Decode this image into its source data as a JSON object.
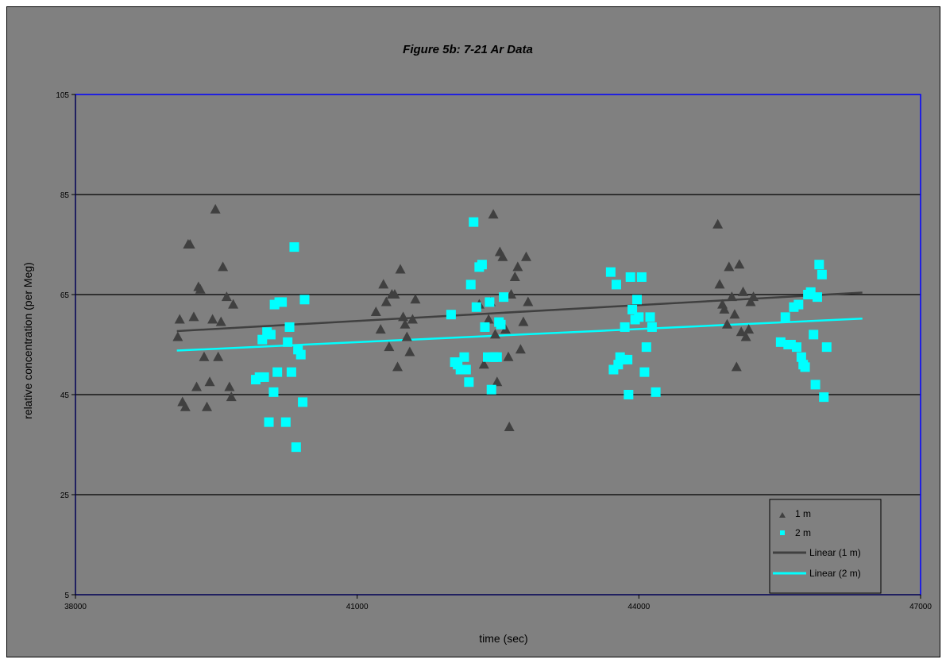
{
  "chart_data": {
    "type": "scatter",
    "title": "Figure 5b: 7-21 Ar Data",
    "xlabel": "time (sec)",
    "ylabel": "relative concentration (per Meg)",
    "xlim": [
      38000,
      47000
    ],
    "ylim": [
      5,
      105
    ],
    "x_ticks": [
      38000,
      41000,
      44000,
      47000
    ],
    "x_tick_labels": [
      "38000",
      "41000",
      "44000",
      "47000"
    ],
    "y_ticks": [
      5,
      25,
      45,
      65,
      85,
      105
    ],
    "y_tick_labels": [
      "5",
      "25",
      "45",
      "65",
      "85",
      "105"
    ],
    "grid": "horizontal",
    "legend_position": "bottom-right",
    "colors": {
      "background": "#808080",
      "plot_border": "#0000ff",
      "gridline": "#000000",
      "series_1m": "#404040",
      "series_2m": "#00ffff"
    },
    "series": [
      {
        "name": "1 m",
        "marker": "triangle",
        "color": "#404040",
        "points": [
          [
            39090,
            56.5
          ],
          [
            39110,
            60.0
          ],
          [
            39140,
            43.5
          ],
          [
            39170,
            42.5
          ],
          [
            39200,
            75.0
          ],
          [
            39220,
            75.0
          ],
          [
            39260,
            60.5
          ],
          [
            39290,
            46.5
          ],
          [
            39310,
            66.5
          ],
          [
            39330,
            66.0
          ],
          [
            39370,
            52.5
          ],
          [
            39400,
            42.5
          ],
          [
            39430,
            47.5
          ],
          [
            39460,
            60.0
          ],
          [
            39490,
            82.0
          ],
          [
            39520,
            52.5
          ],
          [
            39550,
            59.5
          ],
          [
            39570,
            70.5
          ],
          [
            39610,
            64.5
          ],
          [
            39640,
            46.5
          ],
          [
            39660,
            44.5
          ],
          [
            39680,
            63.0
          ],
          [
            41200,
            61.5
          ],
          [
            41250,
            58.0
          ],
          [
            41280,
            67.0
          ],
          [
            41310,
            63.5
          ],
          [
            41340,
            54.5
          ],
          [
            41370,
            65.0
          ],
          [
            41400,
            65.0
          ],
          [
            41430,
            50.5
          ],
          [
            41460,
            70.0
          ],
          [
            41490,
            60.5
          ],
          [
            41510,
            59.0
          ],
          [
            41530,
            56.5
          ],
          [
            41560,
            53.5
          ],
          [
            41590,
            60.0
          ],
          [
            41620,
            64.0
          ],
          [
            42300,
            63.0
          ],
          [
            42350,
            51.0
          ],
          [
            42400,
            60.0
          ],
          [
            42420,
            63.5
          ],
          [
            42450,
            81.0
          ],
          [
            42470,
            57.0
          ],
          [
            42490,
            47.5
          ],
          [
            42520,
            73.5
          ],
          [
            42550,
            72.5
          ],
          [
            42580,
            58.0
          ],
          [
            42610,
            52.5
          ],
          [
            42640,
            65.0
          ],
          [
            42680,
            68.5
          ],
          [
            42710,
            70.5
          ],
          [
            42740,
            54.0
          ],
          [
            42770,
            59.5
          ],
          [
            42800,
            72.5
          ],
          [
            42820,
            63.5
          ],
          [
            42620,
            38.5
          ],
          [
            44840,
            79.0
          ],
          [
            44860,
            67.0
          ],
          [
            44890,
            63.0
          ],
          [
            44910,
            62.0
          ],
          [
            44940,
            59.0
          ],
          [
            44960,
            70.5
          ],
          [
            44990,
            64.5
          ],
          [
            45020,
            61.0
          ],
          [
            45040,
            50.5
          ],
          [
            45070,
            71.0
          ],
          [
            45090,
            57.5
          ],
          [
            45110,
            65.5
          ],
          [
            45140,
            56.5
          ],
          [
            45170,
            58.0
          ],
          [
            45190,
            63.5
          ],
          [
            45220,
            64.5
          ]
        ],
        "trendline": {
          "name": "Linear (1 m)",
          "color": "#404040",
          "x": [
            39080,
            46380
          ],
          "y": [
            57.7,
            65.4
          ]
        }
      },
      {
        "name": "2 m",
        "marker": "square",
        "color": "#00ffff",
        "points": [
          [
            39920,
            48.0
          ],
          [
            39960,
            48.5
          ],
          [
            39990,
            56.0
          ],
          [
            40010,
            48.5
          ],
          [
            40040,
            57.5
          ],
          [
            40060,
            39.5
          ],
          [
            40080,
            57.0
          ],
          [
            40110,
            45.5
          ],
          [
            40120,
            63.0
          ],
          [
            40150,
            49.5
          ],
          [
            40170,
            63.5
          ],
          [
            40200,
            63.5
          ],
          [
            40240,
            39.5
          ],
          [
            40260,
            55.5
          ],
          [
            40280,
            58.5
          ],
          [
            40300,
            49.5
          ],
          [
            40330,
            74.5
          ],
          [
            40350,
            34.5
          ],
          [
            40370,
            54.0
          ],
          [
            40400,
            53.0
          ],
          [
            40420,
            43.5
          ],
          [
            40440,
            64.0
          ],
          [
            42000,
            61.0
          ],
          [
            42040,
            51.5
          ],
          [
            42070,
            51.0
          ],
          [
            42100,
            50.0
          ],
          [
            42120,
            50.0
          ],
          [
            42140,
            52.5
          ],
          [
            42160,
            50.0
          ],
          [
            42190,
            47.5
          ],
          [
            42210,
            67.0
          ],
          [
            42240,
            79.5
          ],
          [
            42270,
            62.5
          ],
          [
            42300,
            70.5
          ],
          [
            42330,
            71.0
          ],
          [
            42360,
            58.5
          ],
          [
            42390,
            52.5
          ],
          [
            42410,
            63.5
          ],
          [
            42430,
            46.0
          ],
          [
            42450,
            52.5
          ],
          [
            42470,
            52.5
          ],
          [
            42490,
            52.5
          ],
          [
            42510,
            59.5
          ],
          [
            42530,
            59.0
          ],
          [
            42560,
            64.5
          ],
          [
            43700,
            69.5
          ],
          [
            43730,
            50.0
          ],
          [
            43760,
            67.0
          ],
          [
            43780,
            51.0
          ],
          [
            43800,
            52.5
          ],
          [
            43830,
            52.0
          ],
          [
            43850,
            58.5
          ],
          [
            43880,
            52.0
          ],
          [
            43890,
            45.0
          ],
          [
            43910,
            68.5
          ],
          [
            43930,
            62.0
          ],
          [
            43960,
            60.0
          ],
          [
            43980,
            64.0
          ],
          [
            44000,
            60.5
          ],
          [
            44030,
            68.5
          ],
          [
            44060,
            49.5
          ],
          [
            44080,
            54.5
          ],
          [
            44120,
            60.5
          ],
          [
            44140,
            58.5
          ],
          [
            44180,
            45.5
          ],
          [
            45510,
            55.5
          ],
          [
            45560,
            60.5
          ],
          [
            45590,
            55.0
          ],
          [
            45620,
            55.0
          ],
          [
            45650,
            62.5
          ],
          [
            45680,
            54.5
          ],
          [
            45700,
            63.0
          ],
          [
            45730,
            52.5
          ],
          [
            45750,
            51.0
          ],
          [
            45770,
            50.5
          ],
          [
            45800,
            65.0
          ],
          [
            45830,
            65.5
          ],
          [
            45860,
            57.0
          ],
          [
            45880,
            47.0
          ],
          [
            45900,
            64.5
          ],
          [
            45920,
            71.0
          ],
          [
            45950,
            69.0
          ],
          [
            45970,
            44.5
          ],
          [
            46000,
            54.5
          ]
        ],
        "trendline": {
          "name": "Linear (2 m)",
          "color": "#00ffff",
          "x": [
            39080,
            46380
          ],
          "y": [
            53.8,
            60.2
          ]
        }
      }
    ],
    "legend": [
      "1 m",
      "2 m",
      "Linear (1 m)",
      "Linear (2 m)"
    ]
  }
}
